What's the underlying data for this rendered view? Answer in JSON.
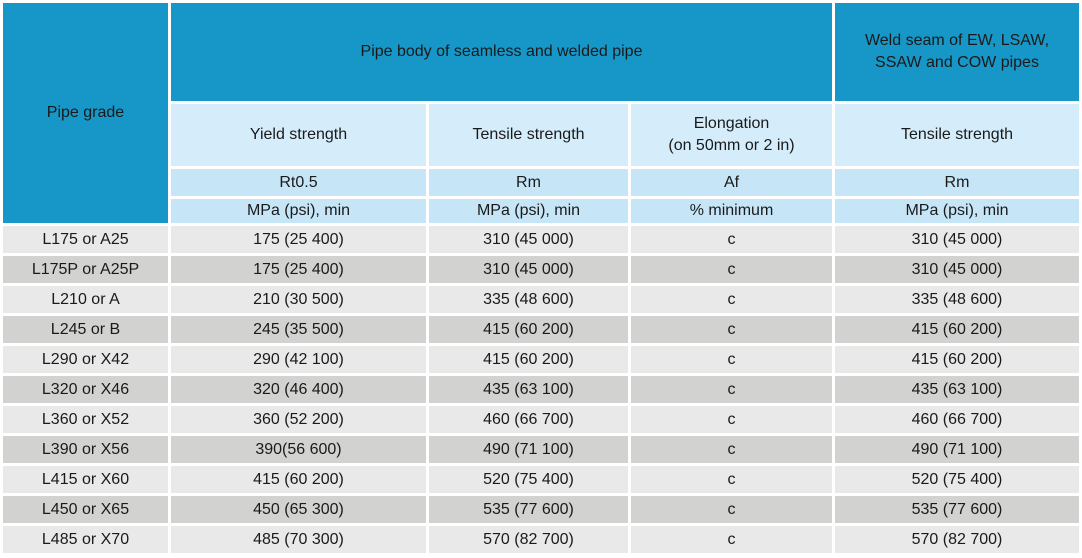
{
  "table": {
    "pipe_grade_header": "Pipe grade",
    "group_headers": {
      "pipe_body": "Pipe body of seamless and welded pipe",
      "weld_seam_line1": "Weld seam of EW, LSAW,",
      "weld_seam_line2": "SSAW and COW pipes"
    },
    "sub_headers": {
      "yield": "Yield strength",
      "tensile": "Tensile strength",
      "elongation_line1": "Elongation",
      "elongation_line2": "(on 50mm or 2 in)",
      "weld_tensile": "Tensile strength"
    },
    "symbol_row": [
      "Rt0.5",
      "Rm",
      "Af",
      "Rm"
    ],
    "unit_row": [
      "MPa (psi), min",
      "MPa (psi), min",
      "% minimum",
      "MPa (psi), min"
    ],
    "rows": [
      {
        "grade": "L175 or A25",
        "yield": "175 (25 400)",
        "tensile": "310 (45 000)",
        "elongation": "c",
        "weld_tensile": "310 (45 000)"
      },
      {
        "grade": "L175P or A25P",
        "yield": "175 (25 400)",
        "tensile": "310 (45 000)",
        "elongation": "c",
        "weld_tensile": "310 (45 000)"
      },
      {
        "grade": "L210 or A",
        "yield": "210 (30 500)",
        "tensile": "335 (48 600)",
        "elongation": "c",
        "weld_tensile": "335 (48 600)"
      },
      {
        "grade": "L245 or B",
        "yield": "245 (35 500)",
        "tensile": "415 (60 200)",
        "elongation": "c",
        "weld_tensile": "415 (60 200)"
      },
      {
        "grade": "L290 or X42",
        "yield": "290 (42 100)",
        "tensile": "415 (60 200)",
        "elongation": "c",
        "weld_tensile": "415 (60 200)"
      },
      {
        "grade": "L320 or X46",
        "yield": "320 (46 400)",
        "tensile": "435 (63 100)",
        "elongation": "c",
        "weld_tensile": "435 (63 100)"
      },
      {
        "grade": "L360 or X52",
        "yield": "360 (52 200)",
        "tensile": "460 (66 700)",
        "elongation": "c",
        "weld_tensile": "460 (66 700)"
      },
      {
        "grade": "L390 or X56",
        "yield": "390(56 600)",
        "tensile": "490 (71 100)",
        "elongation": "c",
        "weld_tensile": "490 (71 100)"
      },
      {
        "grade": "L415 or X60",
        "yield": "415 (60 200)",
        "tensile": "520 (75 400)",
        "elongation": "c",
        "weld_tensile": "520 (75 400)"
      },
      {
        "grade": "L450 or X65",
        "yield": "450 (65 300)",
        "tensile": "535 (77 600)",
        "elongation": "c",
        "weld_tensile": "535 (77 600)"
      },
      {
        "grade": "L485 or X70",
        "yield": "485 (70 300)",
        "tensile": "570 (82 700)",
        "elongation": "c",
        "weld_tensile": "570 (82 700)"
      }
    ],
    "colors": {
      "header_teal": "#1697c8",
      "subheader_blue": "#d5edfb",
      "symbol_unit_blue": "#c6e6f8",
      "row_light_gray": "#e9e9e9",
      "row_dark_gray": "#d2d2d0",
      "border_white": "#ffffff",
      "header_text": "#ffffff",
      "body_text": "#1a1a1a"
    }
  }
}
